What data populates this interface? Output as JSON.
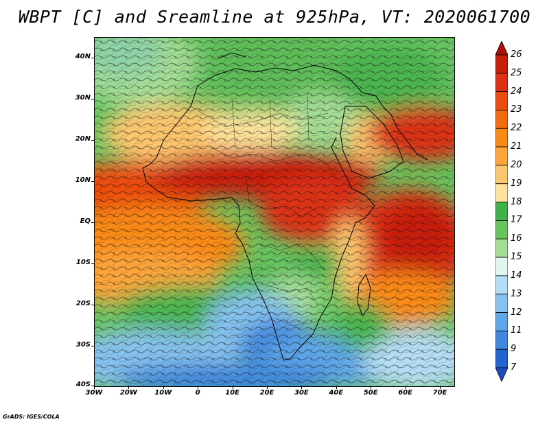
{
  "title": "WBPT [C] and Sreamline at 925hPa, VT: 2020061700",
  "credit": "GrADS: IGES/COLA",
  "lat_labels": [
    "40N",
    "30N",
    "20N",
    "10N",
    "EQ",
    "10S",
    "20S",
    "30S",
    "40S"
  ],
  "lon_labels": [
    "30W",
    "20W",
    "10W",
    "0",
    "10E",
    "20E",
    "30E",
    "40E",
    "50E",
    "60E",
    "70E"
  ],
  "colorbar": {
    "labels": [
      "26",
      "25",
      "24",
      "23",
      "22",
      "21",
      "20",
      "19",
      "18",
      "17",
      "16",
      "15",
      "14",
      "13",
      "12",
      "11",
      "9",
      "7"
    ],
    "colors": [
      "#b10d08",
      "#c81e0c",
      "#dc3112",
      "#ec4c10",
      "#f5690f",
      "#fa8a14",
      "#fca53a",
      "#fcc66e",
      "#fde39b",
      "#3db14a",
      "#67c560",
      "#a4dd95",
      "#e0f6ee",
      "#b5ddf5",
      "#86c2ee",
      "#5ea7e8",
      "#3f88dd",
      "#2264d2",
      "#1a4fc2"
    ]
  },
  "map": {
    "fields": [
      "wet-bulb-potential-temperature",
      "streamlines"
    ],
    "level": "925hPa",
    "valid_time": "2020061700"
  }
}
